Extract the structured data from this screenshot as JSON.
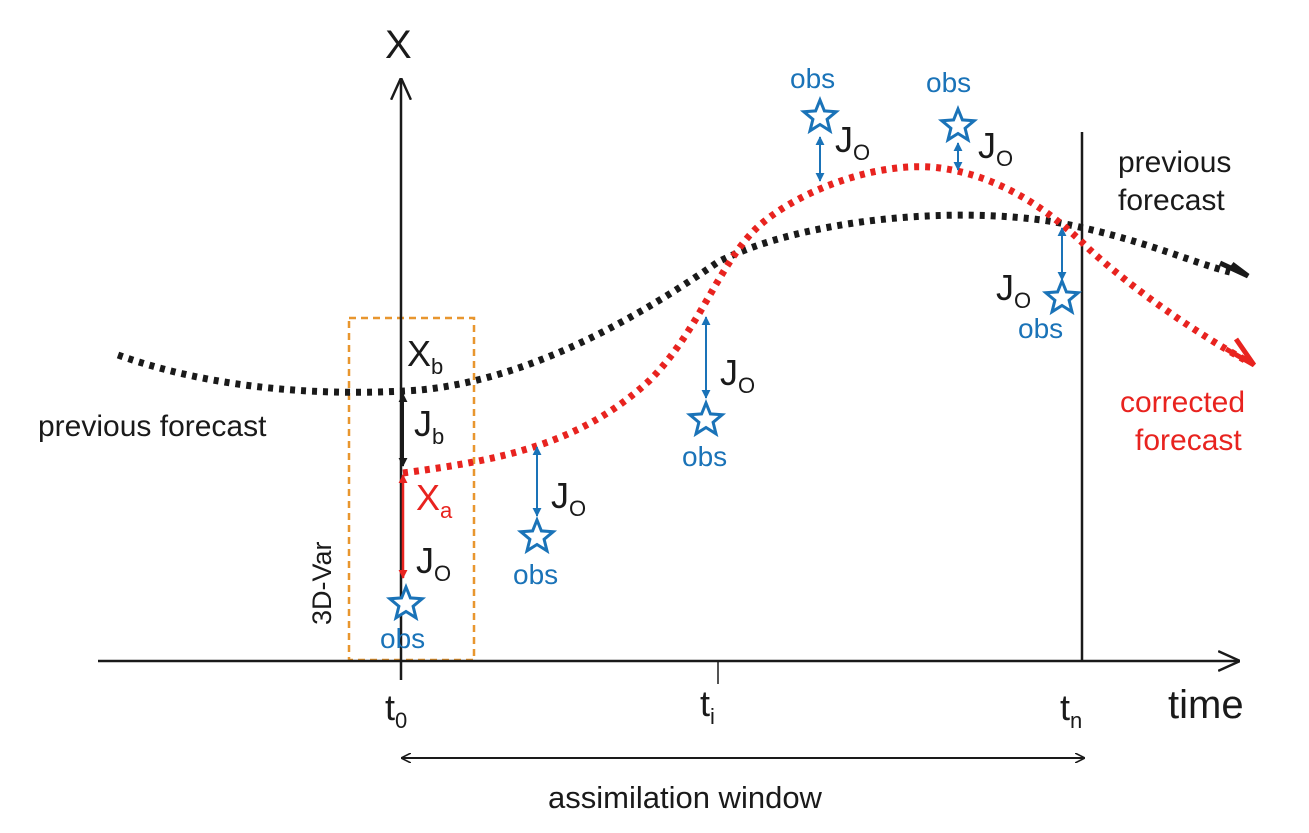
{
  "axes": {
    "y_label": "X",
    "x_label": "time",
    "ticks": [
      {
        "id": "t0",
        "base": "t",
        "sub": "0"
      },
      {
        "id": "ti",
        "base": "t",
        "sub": "i"
      },
      {
        "id": "tn",
        "base": "t",
        "sub": "n"
      }
    ]
  },
  "window_label": "assimilation window",
  "threedvar_label": "3D-Var",
  "previous_forecast_left": "previous forecast",
  "previous_forecast_right": [
    "previous",
    "forecast"
  ],
  "corrected_forecast": [
    "corrected",
    "forecast"
  ],
  "xb": {
    "base": "X",
    "sub": "b"
  },
  "xa": {
    "base": "X",
    "sub": "a"
  },
  "jb": {
    "base": "J",
    "sub": "b"
  },
  "jo": {
    "base": "J",
    "sub": "O"
  },
  "obs_label": "obs",
  "colors": {
    "black": "#1a1a1a",
    "observation_blue": "#1a73b8",
    "corrected_red": "#e8231f",
    "threedvar_box_orange": "#e8962e"
  }
}
